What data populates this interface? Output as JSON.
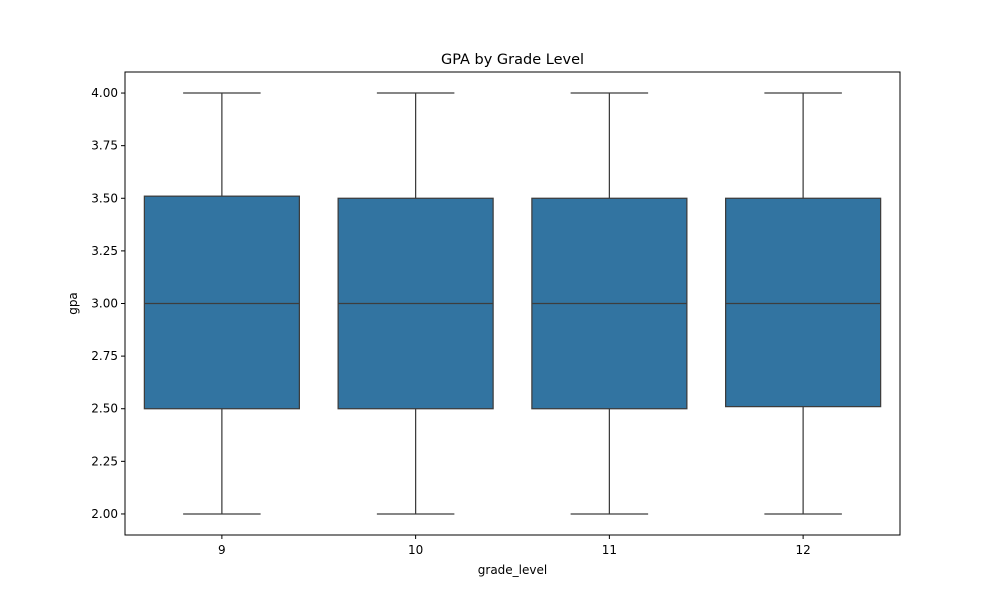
{
  "chart_data": {
    "type": "box",
    "title": "GPA by Grade Level",
    "xlabel": "grade_level",
    "ylabel": "gpa",
    "categories": [
      "9",
      "10",
      "11",
      "12"
    ],
    "boxes": [
      {
        "category": "9",
        "whislo": 2.0,
        "q1": 2.5,
        "med": 3.0,
        "q3": 3.51,
        "whishi": 4.0
      },
      {
        "category": "10",
        "whislo": 2.0,
        "q1": 2.5,
        "med": 3.0,
        "q3": 3.5,
        "whishi": 4.0
      },
      {
        "category": "11",
        "whislo": 2.0,
        "q1": 2.5,
        "med": 3.0,
        "q3": 3.5,
        "whishi": 4.0
      },
      {
        "category": "12",
        "whislo": 2.0,
        "q1": 2.51,
        "med": 3.0,
        "q3": 3.5,
        "whishi": 4.0
      }
    ],
    "ylim": [
      1.9,
      4.1
    ],
    "yticks": [
      "2.00",
      "2.25",
      "2.50",
      "2.75",
      "3.00",
      "3.25",
      "3.50",
      "3.75",
      "4.00"
    ],
    "grid": false,
    "box_color": "#3274a1",
    "line_color": "#3d3d3d"
  }
}
